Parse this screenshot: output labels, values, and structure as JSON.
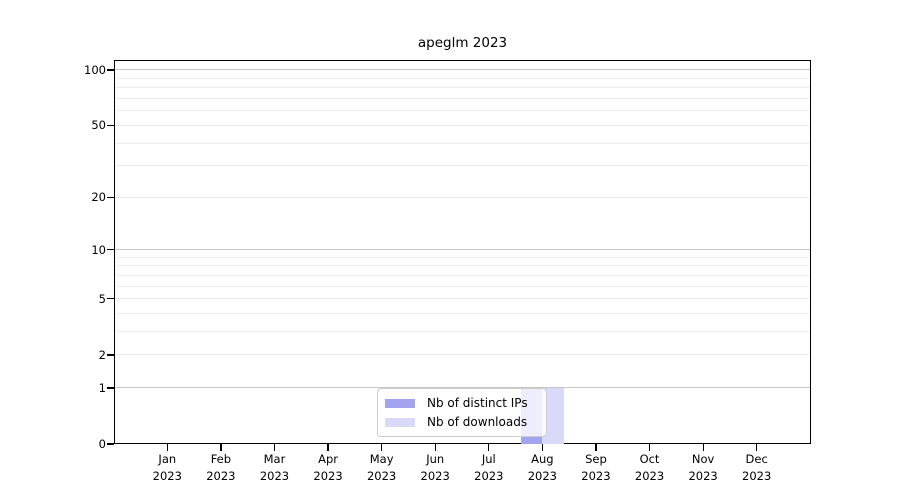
{
  "figure_title": "apeglm 2023",
  "chart_data": {
    "type": "bar",
    "title": "apeglm 2023",
    "xlabel": "",
    "ylabel": "",
    "categories": [
      "Jan",
      "Feb",
      "Mar",
      "Apr",
      "May",
      "Jun",
      "Jul",
      "Aug",
      "Sep",
      "Oct",
      "Nov",
      "Dec"
    ],
    "category_year": "2023",
    "series": [
      {
        "name": "Nb of distinct IPs",
        "color": "#a4a4ee",
        "values": [
          0,
          0,
          0,
          0,
          0,
          0,
          0,
          1,
          0,
          0,
          0,
          0
        ]
      },
      {
        "name": "Nb of downloads",
        "color": "#d9d9f8",
        "values": [
          0,
          0,
          0,
          0,
          0,
          0,
          0,
          1,
          0,
          0,
          0,
          0
        ]
      }
    ],
    "yscale": "log1p",
    "ylim": [
      0,
      113
    ],
    "yticks_labeled": [
      0,
      1,
      2,
      5,
      10,
      20,
      50,
      100
    ],
    "ytick_labels": [
      "0",
      "1",
      "2",
      "5",
      "10",
      "20",
      "50",
      "100"
    ],
    "yticks_decade": [
      1,
      10,
      100
    ],
    "yticks_minor": [
      2,
      3,
      4,
      5,
      6,
      7,
      8,
      9,
      20,
      30,
      40,
      50,
      60,
      70,
      80,
      90
    ],
    "grid": true,
    "legend": {
      "position": "lower center",
      "entries": [
        "Nb of distinct IPs",
        "Nb of downloads"
      ]
    }
  },
  "colors": {
    "grid_minor": "#ebebeb",
    "grid_decade": "#c6c6c6",
    "axis": "#000000",
    "legend_border": "#cccccc",
    "background": "#ffffff"
  }
}
